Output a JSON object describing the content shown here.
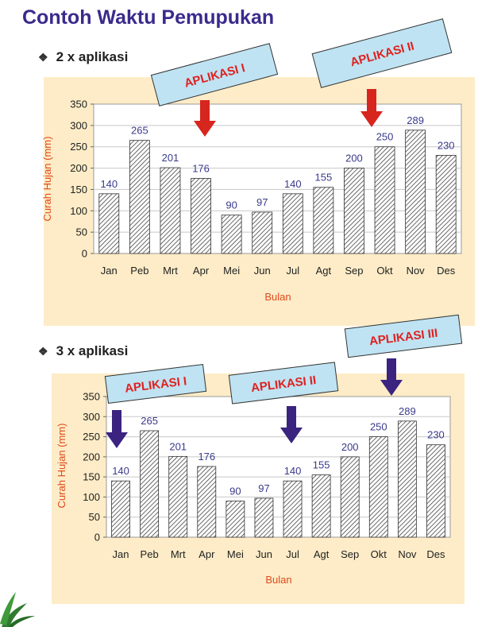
{
  "page_title": "Contoh Waktu Pemupukan",
  "sections": [
    {
      "heading": "2 x aplikasi",
      "labels": [
        "APLIKASI I",
        "APLIKASI II"
      ]
    },
    {
      "heading": "3 x aplikasi",
      "labels": [
        "APLIKASI I",
        "APLIKASI II",
        "APLIKASI III"
      ]
    }
  ],
  "colors": {
    "title": "#3b2a8c",
    "panel": "#fdecc7",
    "axis_label": "#e04a1c",
    "value_label": "#3a3a8c",
    "arrow_red": "#d7261e",
    "arrow_purple": "#3b2380",
    "callout_fill": "#bfe3f2",
    "callout_text": "#e02020"
  },
  "chart_data": [
    {
      "type": "bar",
      "categories": [
        "Jan",
        "Peb",
        "Mrt",
        "Apr",
        "Mei",
        "Jun",
        "Jul",
        "Agt",
        "Sep",
        "Okt",
        "Nov",
        "Des"
      ],
      "values": [
        140,
        265,
        201,
        176,
        90,
        97,
        140,
        155,
        200,
        250,
        289,
        230
      ],
      "xlabel": "Bulan",
      "ylabel": "Curah Hujan (mm)",
      "ylim": [
        0,
        350
      ],
      "yticks": [
        0,
        50,
        100,
        150,
        200,
        250,
        300,
        350
      ],
      "annotations": [
        {
          "text": "APLIKASI I",
          "month": "Apr"
        },
        {
          "text": "APLIKASI II",
          "month": "Sep"
        }
      ]
    },
    {
      "type": "bar",
      "categories": [
        "Jan",
        "Peb",
        "Mrt",
        "Apr",
        "Mei",
        "Jun",
        "Jul",
        "Agt",
        "Sep",
        "Okt",
        "Nov",
        "Des"
      ],
      "values": [
        140,
        265,
        201,
        176,
        90,
        97,
        140,
        155,
        200,
        250,
        289,
        230
      ],
      "xlabel": "Bulan",
      "ylabel": "Curah Hujan (mm)",
      "ylim": [
        0,
        350
      ],
      "yticks": [
        0,
        50,
        100,
        150,
        200,
        250,
        300,
        350
      ],
      "annotations": [
        {
          "text": "APLIKASI I",
          "month": "Jan"
        },
        {
          "text": "APLIKASI II",
          "month": "Jul"
        },
        {
          "text": "APLIKASI III",
          "month": "Okt"
        }
      ]
    }
  ]
}
